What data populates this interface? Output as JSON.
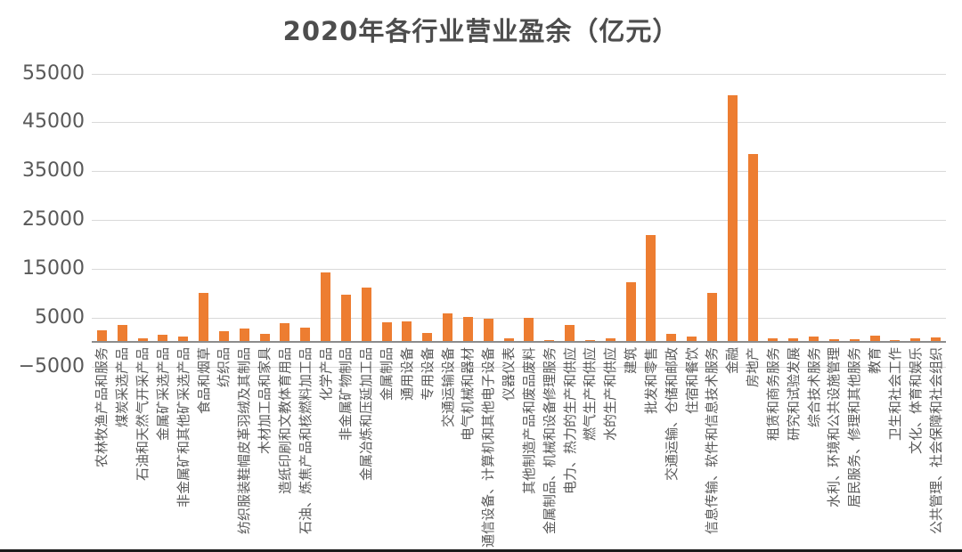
{
  "title": "2020年各行业营业盈余（亿元）",
  "colors": {
    "bar": "#ED7D31",
    "gridline": "#D9D9D9",
    "zero_axis": "#8C8C8C",
    "label_text": "#595959",
    "title_text": "#4D4D4D",
    "bottom_border": "#1A1A1A"
  },
  "chart_data": {
    "type": "bar",
    "title": "2020年各行业营业盈余（亿元）",
    "unit": "亿元",
    "legend": false,
    "grid": true,
    "ylim": [
      -5000,
      55000
    ],
    "ytick_interval": 10000,
    "ytick_labels": [
      "55000",
      "45000",
      "35000",
      "25000",
      "15000",
      "5000",
      "−5000"
    ],
    "categories": [
      "农林牧渔产品和服务",
      "煤炭采选产品",
      "石油和天然气开采产品",
      "金属矿采选产品",
      "非金属矿和其他矿采选产品",
      "食品和烟草",
      "纺织品",
      "纺织服装鞋帽皮革羽绒及其制品",
      "木材加工品和家具",
      "造纸印刷和文教体育用品",
      "石油、炼焦产品和核燃料加工品",
      "化学产品",
      "非金属矿物制品",
      "金属冶炼和压延加工品",
      "金属制品",
      "通用设备",
      "专用设备",
      "交通运输设备",
      "电气机械和器材",
      "通信设备、计算机和其他电子设备",
      "仪器仪表",
      "其他制造产品和废品废料",
      "金属制品、机械和设备修理服务",
      "电力、热力的生产和供应",
      "燃气生产和供应",
      "水的生产和供应",
      "建筑",
      "批发和零售",
      "交通运输、仓储和邮政",
      "住宿和餐饮",
      "信息传输、软件和信息技术服务",
      "金融",
      "房地产",
      "租赁和商务服务",
      "研究和试验发展",
      "综合技术服务",
      "水利、环境和公共设施管理",
      "居民服务、修理和其他服务",
      "教育",
      "卫生和社会工作",
      "文化、体育和娱乐",
      "公共管理、社会保障和社会组织"
    ],
    "values": [
      2400,
      3550,
      800,
      1500,
      1100,
      10100,
      2250,
      2700,
      1750,
      3900,
      2900,
      14200,
      9700,
      11200,
      4000,
      4150,
      1900,
      5800,
      5200,
      4850,
      760,
      5000,
      300,
      3550,
      470,
      700,
      12200,
      22000,
      1650,
      1050,
      10100,
      50500,
      38500,
      720,
      720,
      1130,
      600,
      660,
      1310,
      300,
      710,
      890
    ]
  }
}
